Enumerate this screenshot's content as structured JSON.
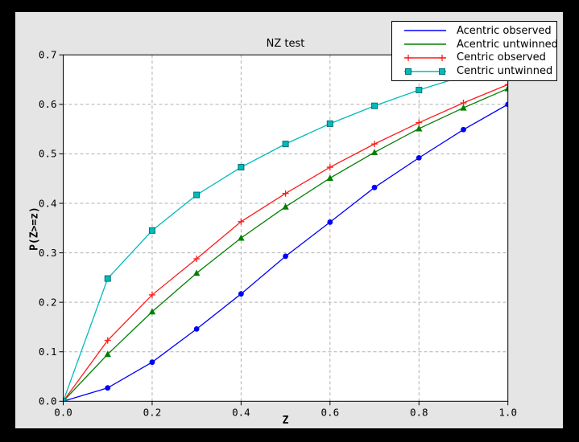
{
  "page": {
    "background_color": "#000000",
    "figure_background_color": "#e5e5e5",
    "plot_background_color": "#ffffff",
    "gridline_color": "#b0b0b0"
  },
  "chart_data": {
    "type": "line",
    "title": "NZ test",
    "xlabel": "Z",
    "ylabel": "P(Z>=z)",
    "xlim": [
      0.0,
      1.0
    ],
    "ylim": [
      0.0,
      0.7
    ],
    "grid": true,
    "legend_position": "upper right",
    "x_tick_labels": [
      "0.0",
      "0.2",
      "0.4",
      "0.6",
      "0.8",
      "1.0"
    ],
    "y_tick_labels": [
      "0.0",
      "0.1",
      "0.2",
      "0.3",
      "0.4",
      "0.5",
      "0.6",
      "0.7"
    ],
    "x": [
      0.0,
      0.1,
      0.2,
      0.3,
      0.4,
      0.5,
      0.6,
      0.7,
      0.8,
      0.9,
      1.0
    ],
    "series": [
      {
        "name": "Acentric observed",
        "color": "#0000ff",
        "marker": "circle",
        "legend_markers": false,
        "values": [
          0.0,
          0.027,
          0.079,
          0.146,
          0.217,
          0.293,
          0.362,
          0.432,
          0.492,
          0.549,
          0.6
        ]
      },
      {
        "name": "Acentric untwinned",
        "color": "#008000",
        "marker": "triangle",
        "legend_markers": false,
        "values": [
          0.0,
          0.095,
          0.181,
          0.259,
          0.33,
          0.393,
          0.451,
          0.503,
          0.551,
          0.593,
          0.632
        ]
      },
      {
        "name": "Centric observed",
        "color": "#ff1a1a",
        "marker": "plus",
        "legend_markers": true,
        "values": [
          0.0,
          0.123,
          0.215,
          0.288,
          0.363,
          0.42,
          0.473,
          0.52,
          0.563,
          0.603,
          0.64
        ]
      },
      {
        "name": "Centric untwinned",
        "color": "#00bcbc",
        "marker": "square",
        "legend_markers": true,
        "values": [
          0.0,
          0.248,
          0.345,
          0.417,
          0.473,
          0.52,
          0.561,
          0.597,
          0.629,
          0.657,
          0.683
        ]
      }
    ]
  }
}
